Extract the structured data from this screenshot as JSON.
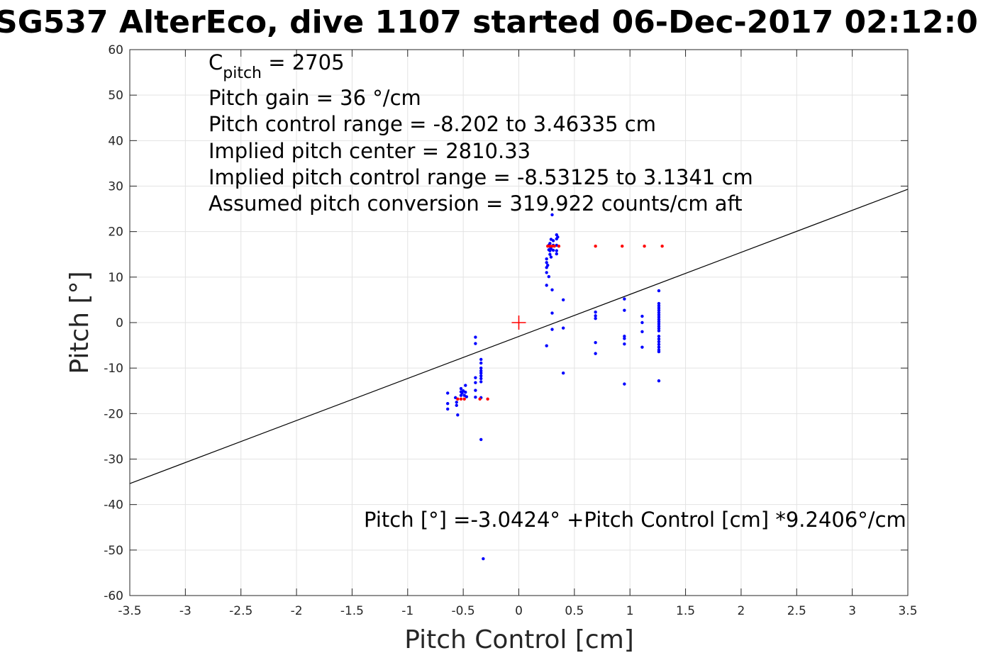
{
  "chart_data": {
    "type": "scatter",
    "title": "SG537 AlterEco, dive 1107 started 06-Dec-2017 02:12:0",
    "xlabel": "Pitch Control [cm]",
    "ylabel": "Pitch [°]",
    "xlim": [
      -3.5,
      3.5
    ],
    "ylim": [
      -60,
      60
    ],
    "xticks": [
      "-3.5",
      "-3",
      "-2.5",
      "-2",
      "-1.5",
      "-1",
      "-0.5",
      "0",
      "0.5",
      "1",
      "1.5",
      "2",
      "2.5",
      "3",
      "3.5"
    ],
    "yticks": [
      "60",
      "50",
      "40",
      "30",
      "20",
      "10",
      "0",
      "-10",
      "-20",
      "-30",
      "-40",
      "-50",
      "-60"
    ],
    "grid": true,
    "colors": {
      "observed": "#0000ff",
      "target": "#ff0000",
      "fit": "#000000",
      "center": "#ff0000"
    },
    "annotations": {
      "c_pitch": {
        "c": "C",
        "sub": "pitch",
        "rest": " = 2705"
      },
      "lines": [
        "Pitch gain = 36 °/cm",
        "Pitch control range = -8.202 to 3.46335 cm",
        "Implied pitch center = 2810.33",
        "Implied pitch control range = -8.53125 to 3.1341 cm",
        "Assumed pitch conversion = 319.922 counts/cm aft"
      ],
      "equation": "Pitch [°] =-3.0424° +Pitch Control [cm] *9.2406°/cm"
    },
    "fit_line": {
      "intercept": -3.0424,
      "slope": 9.2406
    },
    "center_marker": {
      "x": 0,
      "y": 0
    },
    "series": [
      {
        "role": "observed",
        "points": [
          [
            -0.64,
            -15.5
          ],
          [
            -0.64,
            -17.8
          ],
          [
            -0.64,
            -19.0
          ],
          [
            -0.57,
            -16.5
          ],
          [
            -0.56,
            -17.5
          ],
          [
            -0.56,
            -18.2
          ],
          [
            -0.55,
            -20.3
          ],
          [
            -0.52,
            -14.5
          ],
          [
            -0.52,
            -15.2
          ],
          [
            -0.52,
            -16.0
          ],
          [
            -0.51,
            -15.5
          ],
          [
            -0.5,
            -15.0
          ],
          [
            -0.49,
            -16.0
          ],
          [
            -0.48,
            -15.3
          ],
          [
            -0.48,
            -13.8
          ],
          [
            -0.47,
            -16.3
          ],
          [
            -0.39,
            -3.2
          ],
          [
            -0.39,
            -4.6
          ],
          [
            -0.39,
            -12.1
          ],
          [
            -0.39,
            -13.2
          ],
          [
            -0.39,
            -14.9
          ],
          [
            -0.39,
            -16.4
          ],
          [
            -0.34,
            -8.1
          ],
          [
            -0.34,
            -8.9
          ],
          [
            -0.34,
            -10.0
          ],
          [
            -0.34,
            -10.6
          ],
          [
            -0.34,
            -11.1
          ],
          [
            -0.34,
            -11.7
          ],
          [
            -0.34,
            -12.3
          ],
          [
            -0.34,
            -13.0
          ],
          [
            -0.34,
            -16.5
          ],
          [
            -0.34,
            -25.7
          ],
          [
            -0.32,
            -51.9
          ],
          [
            0.25,
            8.2
          ],
          [
            0.25,
            -5.1
          ],
          [
            0.25,
            11.0
          ],
          [
            0.25,
            12.1
          ],
          [
            0.25,
            13.2
          ],
          [
            0.25,
            14.0
          ],
          [
            0.26,
            12.6
          ],
          [
            0.27,
            10.1
          ],
          [
            0.27,
            16.0
          ],
          [
            0.27,
            17.0
          ],
          [
            0.28,
            15.0
          ],
          [
            0.28,
            15.8
          ],
          [
            0.28,
            16.7
          ],
          [
            0.28,
            17.4
          ],
          [
            0.29,
            18.3
          ],
          [
            0.29,
            16.2
          ],
          [
            0.29,
            14.4
          ],
          [
            0.3,
            23.7
          ],
          [
            0.3,
            7.2
          ],
          [
            0.3,
            2.1
          ],
          [
            0.3,
            -1.5
          ],
          [
            0.31,
            18.0
          ],
          [
            0.31,
            17.0
          ],
          [
            0.31,
            15.9
          ],
          [
            0.34,
            19.3
          ],
          [
            0.34,
            18.4
          ],
          [
            0.34,
            17.0
          ],
          [
            0.34,
            15.8
          ],
          [
            0.34,
            15.1
          ],
          [
            0.35,
            18.8
          ],
          [
            0.4,
            5.0
          ],
          [
            0.4,
            -1.2
          ],
          [
            0.4,
            -11.1
          ],
          [
            0.69,
            2.3
          ],
          [
            0.69,
            1.5
          ],
          [
            0.69,
            0.9
          ],
          [
            0.69,
            -4.4
          ],
          [
            0.69,
            -6.8
          ],
          [
            0.95,
            5.2
          ],
          [
            0.95,
            2.7
          ],
          [
            0.95,
            -3.0
          ],
          [
            0.95,
            -3.5
          ],
          [
            0.95,
            -4.7
          ],
          [
            0.95,
            -13.5
          ],
          [
            1.11,
            1.4
          ],
          [
            1.11,
            0.0
          ],
          [
            1.11,
            -2.0
          ],
          [
            1.11,
            -5.4
          ],
          [
            1.26,
            7.0
          ],
          [
            1.26,
            4.2
          ],
          [
            1.26,
            3.7
          ],
          [
            1.26,
            3.2
          ],
          [
            1.26,
            2.7
          ],
          [
            1.26,
            2.2
          ],
          [
            1.26,
            1.7
          ],
          [
            1.26,
            1.2
          ],
          [
            1.26,
            0.7
          ],
          [
            1.26,
            0.2
          ],
          [
            1.26,
            -0.3
          ],
          [
            1.26,
            -0.8
          ],
          [
            1.26,
            -1.3
          ],
          [
            1.26,
            -1.8
          ],
          [
            1.26,
            -3.0
          ],
          [
            1.26,
            -3.6
          ],
          [
            1.26,
            -4.2
          ],
          [
            1.26,
            -4.8
          ],
          [
            1.26,
            -5.4
          ],
          [
            1.26,
            -6.0
          ],
          [
            1.26,
            -6.4
          ],
          [
            1.26,
            -12.8
          ]
        ]
      },
      {
        "role": "target",
        "points": [
          [
            -0.55,
            -16.8
          ],
          [
            -0.52,
            -16.8
          ],
          [
            -0.49,
            -16.8
          ],
          [
            -0.35,
            -16.8
          ],
          [
            -0.28,
            -16.8
          ],
          [
            0.26,
            16.8
          ],
          [
            0.28,
            16.8
          ],
          [
            0.3,
            16.8
          ],
          [
            0.32,
            16.8
          ],
          [
            0.36,
            16.8
          ],
          [
            0.69,
            16.8
          ],
          [
            0.93,
            16.8
          ],
          [
            1.13,
            16.8
          ],
          [
            1.29,
            16.8
          ]
        ]
      }
    ]
  }
}
